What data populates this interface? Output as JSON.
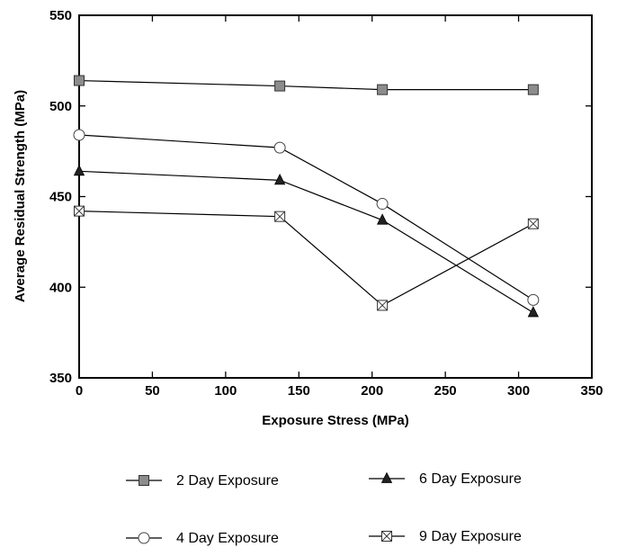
{
  "chart_data": {
    "type": "line",
    "title": "",
    "xlabel": "Exposure Stress (MPa)",
    "ylabel": "Average Residual Strength (MPa)",
    "xlim": [
      0,
      350
    ],
    "ylim": [
      350,
      550
    ],
    "xticks": [
      0,
      50,
      100,
      150,
      200,
      250,
      300,
      350
    ],
    "yticks": [
      350,
      400,
      450,
      500,
      550
    ],
    "grid": false,
    "legend_position": "bottom",
    "series": [
      {
        "name": "2 Day Exposure",
        "marker": "filled-square",
        "x": [
          0,
          137,
          207,
          310
        ],
        "y": [
          514,
          511,
          509,
          509
        ]
      },
      {
        "name": "4 Day Exposure",
        "marker": "open-circle",
        "x": [
          0,
          137,
          207,
          310
        ],
        "y": [
          484,
          477,
          446,
          393
        ]
      },
      {
        "name": "6 Day Exposure",
        "marker": "filled-triangle",
        "x": [
          0,
          137,
          207,
          310
        ],
        "y": [
          464,
          459,
          437,
          386
        ]
      },
      {
        "name": "9 Day Exposure",
        "marker": "crossed-square",
        "x": [
          0,
          137,
          207,
          310
        ],
        "y": [
          442,
          439,
          390,
          435
        ]
      }
    ],
    "colors": {
      "line": "#000000",
      "marker_fill": "#8c8c8c"
    }
  }
}
